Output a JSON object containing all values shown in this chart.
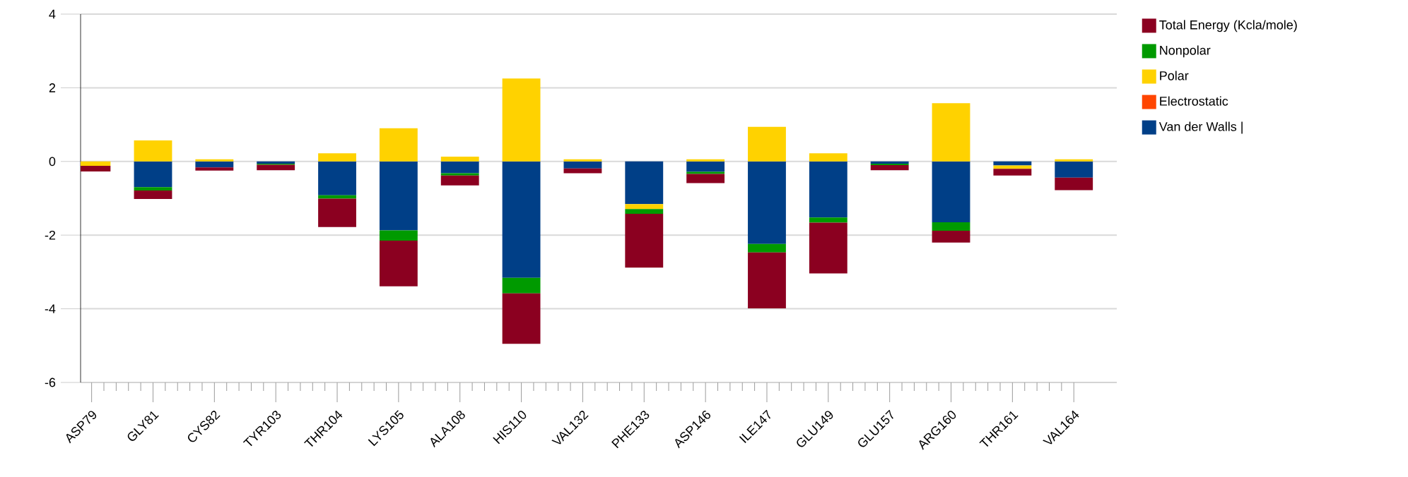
{
  "chart_data": {
    "type": "bar",
    "stacked": true,
    "categories": [
      "ASP79",
      "GLY81",
      "CYS82",
      "TYR103",
      "THR104",
      "LYS105",
      "ALA108",
      "HIS110",
      "VAL132",
      "PHE133",
      "ASP146",
      "ILE147",
      "GLU149",
      "GLU157",
      "ARG160",
      "THR161",
      "VAL164"
    ],
    "series": [
      {
        "name": "Van der Walls |",
        "color": "#003f87",
        "values": [
          0,
          -0.7,
          -0.16,
          -0.06,
          -0.92,
          -1.87,
          -0.32,
          -3.16,
          -0.19,
          -1.16,
          -0.28,
          -2.24,
          -1.52,
          -0.06,
          -1.65,
          -0.11,
          -0.44
        ]
      },
      {
        "name": "Electrostatic",
        "color": "#ff4500",
        "values": [
          0,
          0,
          0,
          0,
          0,
          0,
          0,
          0,
          0,
          0,
          0,
          0,
          0,
          0,
          0,
          0,
          0
        ]
      },
      {
        "name": "Polar",
        "color": "#ffd200",
        "values": [
          -0.12,
          0.57,
          0.06,
          0,
          0.22,
          0.9,
          0.13,
          2.25,
          0.06,
          -0.13,
          0.06,
          0.94,
          0.22,
          0,
          1.58,
          -0.09,
          0.06
        ]
      },
      {
        "name": "Nonpolar",
        "color": "#009a00",
        "values": [
          0,
          -0.09,
          0,
          -0.03,
          -0.09,
          -0.28,
          -0.06,
          -0.42,
          0,
          -0.13,
          -0.06,
          -0.23,
          -0.14,
          -0.04,
          -0.23,
          0,
          0
        ]
      },
      {
        "name": "Total Energy (Kcla/mole)",
        "color": "#8b0020",
        "values": [
          -0.15,
          -0.23,
          -0.09,
          -0.15,
          -0.77,
          -1.24,
          -0.27,
          -1.37,
          -0.13,
          -1.46,
          -0.25,
          -1.52,
          -1.38,
          -0.14,
          -0.32,
          -0.18,
          -0.34
        ]
      }
    ],
    "ylim": [
      -6,
      4
    ],
    "yticks": [
      -6,
      -4,
      -2,
      0,
      2,
      4
    ],
    "grid": "y",
    "legend": "right"
  }
}
